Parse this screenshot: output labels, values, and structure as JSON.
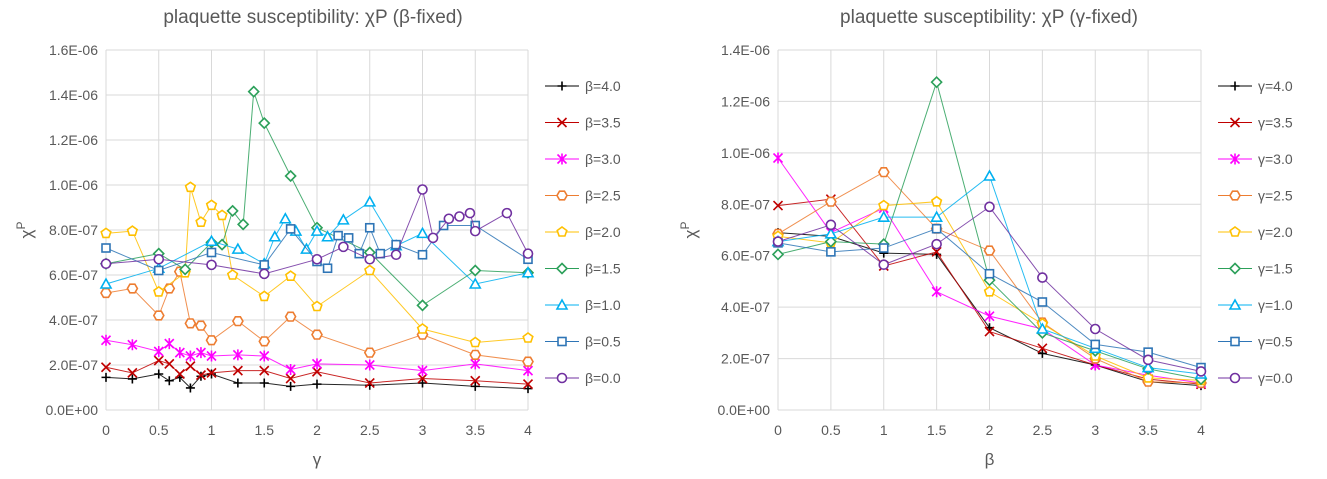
{
  "chart_data": [
    {
      "type": "line",
      "title": "plaquette susceptibility: χP  (β-fixed)",
      "xlabel": "γ",
      "ylabel_main": "χ",
      "ylabel_sup": "P",
      "xlim": [
        0,
        4
      ],
      "ylim": [
        0,
        1.6e-06
      ],
      "xticks": [
        "0",
        "0.5",
        "1",
        "1.5",
        "2",
        "2.5",
        "3",
        "3.5",
        "4"
      ],
      "yticks": [
        "0.0E+00",
        "2.0E-07",
        "4.0E-07",
        "6.0E-07",
        "8.0E-07",
        "1.0E-06",
        "1.2E-06",
        "1.4E-06",
        "1.6E-06"
      ],
      "grid": true,
      "legend_position": "right",
      "series": [
        {
          "name": "β=4.0",
          "color": "#000000",
          "marker": "plus",
          "x": [
            0,
            0.25,
            0.5,
            0.6,
            0.7,
            0.8,
            0.9,
            1.0,
            1.25,
            1.5,
            1.75,
            2.0,
            2.5,
            3.0,
            3.5,
            4.0
          ],
          "y": [
            1.45e-07,
            1.38e-07,
            1.6e-07,
            1.3e-07,
            1.45e-07,
            9.8e-08,
            1.5e-07,
            1.6e-07,
            1.2e-07,
            1.2e-07,
            1.05e-07,
            1.15e-07,
            1.1e-07,
            1.2e-07,
            1.05e-07,
            9.5e-08
          ]
        },
        {
          "name": "β=3.5",
          "color": "#c00000",
          "marker": "x",
          "x": [
            0,
            0.25,
            0.5,
            0.6,
            0.7,
            0.8,
            0.9,
            1.0,
            1.25,
            1.5,
            1.75,
            2.0,
            2.5,
            3.0,
            3.5,
            4.0
          ],
          "y": [
            1.9e-07,
            1.65e-07,
            2.2e-07,
            2.05e-07,
            1.6e-07,
            1.95e-07,
            1.55e-07,
            1.65e-07,
            1.75e-07,
            1.75e-07,
            1.4e-07,
            1.7e-07,
            1.2e-07,
            1.4e-07,
            1.3e-07,
            1.15e-07
          ]
        },
        {
          "name": "β=3.0",
          "color": "#ff00ff",
          "marker": "star",
          "x": [
            0,
            0.25,
            0.5,
            0.6,
            0.7,
            0.8,
            0.9,
            1.0,
            1.25,
            1.5,
            1.75,
            2.0,
            2.5,
            3.0,
            3.5,
            4.0
          ],
          "y": [
            3.1e-07,
            2.9e-07,
            2.6e-07,
            2.95e-07,
            2.55e-07,
            2.4e-07,
            2.55e-07,
            2.4e-07,
            2.45e-07,
            2.4e-07,
            1.8e-07,
            2.05e-07,
            2e-07,
            1.75e-07,
            2.05e-07,
            1.75e-07
          ]
        },
        {
          "name": "β=2.5",
          "color": "#ed7d31",
          "marker": "hexagon",
          "x": [
            0,
            0.25,
            0.5,
            0.6,
            0.7,
            0.8,
            0.9,
            1.0,
            1.25,
            1.5,
            1.75,
            2.0,
            2.5,
            3.0,
            3.5,
            4.0
          ],
          "y": [
            5.2e-07,
            5.4e-07,
            4.2e-07,
            5.4e-07,
            6.15e-07,
            3.85e-07,
            3.75e-07,
            3.1e-07,
            3.95e-07,
            3.05e-07,
            4.15e-07,
            3.35e-07,
            2.55e-07,
            3.35e-07,
            2.45e-07,
            2.15e-07
          ]
        },
        {
          "name": "β=2.0",
          "color": "#ffc000",
          "marker": "pentagon",
          "x": [
            0,
            0.25,
            0.5,
            0.75,
            0.8,
            0.9,
            1.0,
            1.1,
            1.2,
            1.5,
            1.75,
            2.0,
            2.5,
            3.0,
            3.5,
            4.0
          ],
          "y": [
            7.85e-07,
            7.95e-07,
            5.25e-07,
            6.1e-07,
            9.9e-07,
            8.35e-07,
            9.1e-07,
            8.65e-07,
            6e-07,
            5.05e-07,
            5.95e-07,
            4.6e-07,
            6.2e-07,
            3.6e-07,
            3e-07,
            3.2e-07
          ]
        },
        {
          "name": "β=1.5",
          "color": "#2ca05a",
          "marker": "diamond",
          "x": [
            0,
            0.5,
            0.75,
            1.0,
            1.1,
            1.2,
            1.3,
            1.4,
            1.5,
            1.75,
            2.0,
            2.5,
            3.0,
            3.5,
            4.0
          ],
          "y": [
            6.5e-07,
            6.95e-07,
            6.25e-07,
            7.45e-07,
            7.35e-07,
            8.85e-07,
            8.25e-07,
            1.415e-06,
            1.275e-06,
            1.04e-06,
            8.1e-07,
            7e-07,
            4.65e-07,
            6.2e-07,
            6.1e-07
          ]
        },
        {
          "name": "β=1.0",
          "color": "#00b0f0",
          "marker": "triangle",
          "x": [
            0,
            0.5,
            1.0,
            1.25,
            1.5,
            1.6,
            1.7,
            1.8,
            1.9,
            2.0,
            2.1,
            2.25,
            2.5,
            2.75,
            3.0,
            3.5,
            4.0
          ],
          "y": [
            5.6e-07,
            6.3e-07,
            7.5e-07,
            7.15e-07,
            6.5e-07,
            7.7e-07,
            8.5e-07,
            7.95e-07,
            7.15e-07,
            7.95e-07,
            7.7e-07,
            8.45e-07,
            9.25e-07,
            7.3e-07,
            7.85e-07,
            5.6e-07,
            6.1e-07
          ]
        },
        {
          "name": "β=0.5",
          "color": "#2e75b6",
          "marker": "square",
          "x": [
            0,
            0.5,
            1.0,
            1.5,
            1.75,
            2.0,
            2.1,
            2.2,
            2.3,
            2.4,
            2.5,
            2.6,
            2.75,
            3.0,
            3.2,
            3.5,
            4.0
          ],
          "y": [
            7.2e-07,
            6.2e-07,
            7e-07,
            6.45e-07,
            8.05e-07,
            6.6e-07,
            6.3e-07,
            7.75e-07,
            7.65e-07,
            6.95e-07,
            8.1e-07,
            6.95e-07,
            7.35e-07,
            6.9e-07,
            8.2e-07,
            8.2e-07,
            6.7e-07
          ]
        },
        {
          "name": "β=0.0",
          "color": "#7030a0",
          "marker": "circle",
          "x": [
            0,
            0.5,
            1.0,
            1.5,
            2.0,
            2.25,
            2.5,
            2.75,
            3.0,
            3.1,
            3.25,
            3.35,
            3.45,
            3.5,
            3.8,
            4.0
          ],
          "y": [
            6.5e-07,
            6.7e-07,
            6.45e-07,
            6.05e-07,
            6.7e-07,
            7.25e-07,
            6.7e-07,
            6.9e-07,
            9.8e-07,
            7.65e-07,
            8.5e-07,
            8.6e-07,
            8.75e-07,
            7.95e-07,
            8.75e-07,
            6.95e-07
          ]
        }
      ]
    },
    {
      "type": "line",
      "title": "plaquette susceptibility: χP  (γ-fixed)",
      "xlabel": "β",
      "ylabel_main": "χ",
      "ylabel_sup": "P",
      "xlim": [
        0,
        4
      ],
      "ylim": [
        0,
        1.4e-06
      ],
      "xticks": [
        "0",
        "0.5",
        "1",
        "1.5",
        "2",
        "2.5",
        "3",
        "3.5",
        "4"
      ],
      "yticks": [
        "0.0E+00",
        "2.0E-07",
        "4.0E-07",
        "6.0E-07",
        "8.0E-07",
        "1.0E-06",
        "1.2E-06",
        "1.4E-06"
      ],
      "grid": true,
      "legend_position": "right",
      "series": [
        {
          "name": "γ=4.0",
          "color": "#000000",
          "marker": "plus",
          "x": [
            0,
            0.5,
            1,
            1.5,
            2,
            2.5,
            3,
            3.5,
            4
          ],
          "y": [
            6.9e-07,
            6.75e-07,
            6.1e-07,
            6.05e-07,
            3.2e-07,
            2.2e-07,
            1.75e-07,
            1.1e-07,
            9.5e-08
          ]
        },
        {
          "name": "γ=3.5",
          "color": "#c00000",
          "marker": "x",
          "x": [
            0,
            0.5,
            1,
            1.5,
            2,
            2.5,
            3,
            3.5,
            4
          ],
          "y": [
            7.95e-07,
            8.2e-07,
            5.6e-07,
            6.15e-07,
            3.05e-07,
            2.4e-07,
            1.75e-07,
            1.2e-07,
            1e-07
          ]
        },
        {
          "name": "γ=3.0",
          "color": "#ff00ff",
          "marker": "star",
          "x": [
            0,
            0.5,
            1,
            1.5,
            2,
            2.5,
            3,
            3.5,
            4
          ],
          "y": [
            9.8e-07,
            6.9e-07,
            7.85e-07,
            4.6e-07,
            3.65e-07,
            3.15e-07,
            1.75e-07,
            1.35e-07,
            1.05e-07
          ]
        },
        {
          "name": "γ=2.5",
          "color": "#ed7d31",
          "marker": "hexagon",
          "x": [
            0,
            0.5,
            1,
            1.5,
            2,
            2.5,
            3,
            3.5,
            4
          ],
          "y": [
            6.85e-07,
            8.1e-07,
            9.25e-07,
            7.05e-07,
            6.2e-07,
            3.4e-07,
            2e-07,
            1.1e-07,
            1.05e-07
          ]
        },
        {
          "name": "γ=2.0",
          "color": "#ffc000",
          "marker": "pentagon",
          "x": [
            0,
            0.5,
            1,
            1.5,
            2,
            2.5,
            3,
            3.5,
            4
          ],
          "y": [
            6.75e-07,
            6.5e-07,
            7.95e-07,
            8.1e-07,
            4.6e-07,
            3.35e-07,
            2.1e-07,
            1.25e-07,
            1.15e-07
          ]
        },
        {
          "name": "γ=1.5",
          "color": "#2ca05a",
          "marker": "diamond",
          "x": [
            0,
            0.5,
            1,
            1.5,
            2,
            2.5,
            3,
            3.5,
            4
          ],
          "y": [
            6.05e-07,
            6.55e-07,
            6.45e-07,
            1.275e-06,
            5.05e-07,
            3e-07,
            2.3e-07,
            1.6e-07,
            1.2e-07
          ]
        },
        {
          "name": "γ=1.0",
          "color": "#00b0f0",
          "marker": "triangle",
          "x": [
            0,
            0.5,
            1,
            1.5,
            2,
            2.5,
            3,
            3.5,
            4
          ],
          "y": [
            6.55e-07,
            6.85e-07,
            7.5e-07,
            7.5e-07,
            9.1e-07,
            3.15e-07,
            2.4e-07,
            1.65e-07,
            1.4e-07
          ]
        },
        {
          "name": "γ=0.5",
          "color": "#2e75b6",
          "marker": "square",
          "x": [
            0,
            0.5,
            1,
            1.5,
            2,
            2.5,
            3,
            3.5,
            4
          ],
          "y": [
            6.5e-07,
            6.15e-07,
            6.3e-07,
            7.05e-07,
            5.3e-07,
            4.2e-07,
            2.55e-07,
            2.25e-07,
            1.65e-07
          ]
        },
        {
          "name": "γ=0.0",
          "color": "#7030a0",
          "marker": "circle",
          "x": [
            0,
            0.5,
            1,
            1.5,
            2,
            2.5,
            3,
            3.5,
            4
          ],
          "y": [
            6.55e-07,
            7.2e-07,
            5.65e-07,
            6.45e-07,
            7.9e-07,
            5.15e-07,
            3.15e-07,
            1.95e-07,
            1.5e-07
          ]
        }
      ]
    }
  ]
}
